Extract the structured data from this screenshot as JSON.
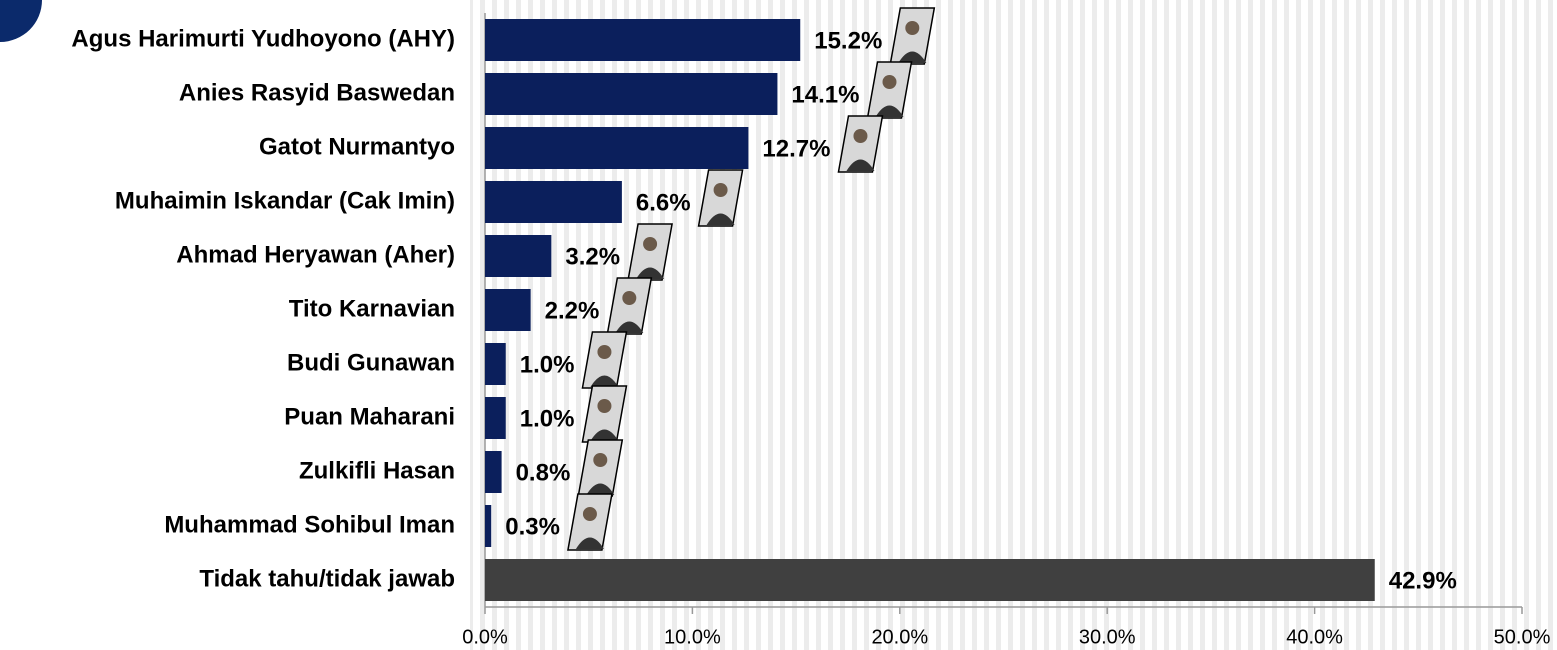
{
  "chart_data": {
    "type": "hbar",
    "categories": [
      "Agus Harimurti Yudhoyono (AHY)",
      "Anies Rasyid Baswedan",
      "Gatot Nurmantyo",
      "Muhaimin Iskandar (Cak Imin)",
      "Ahmad Heryawan (Aher)",
      "Tito Karnavian",
      "Budi Gunawan",
      "Puan Maharani",
      "Zulkifli Hasan",
      "Muhammad Sohibul Iman",
      "Tidak tahu/tidak jawab"
    ],
    "values": [
      15.2,
      14.1,
      12.7,
      6.6,
      3.2,
      2.2,
      1.0,
      1.0,
      0.8,
      0.3,
      42.9
    ],
    "value_labels": [
      "15.2%",
      "14.1%",
      "12.7%",
      "6.6%",
      "3.2%",
      "2.2%",
      "1.0%",
      "1.0%",
      "0.8%",
      "0.3%",
      "42.9%"
    ],
    "colors": [
      "#0b1f5c",
      "#0b1f5c",
      "#0b1f5c",
      "#0b1f5c",
      "#0b1f5c",
      "#0b1f5c",
      "#0b1f5c",
      "#0b1f5c",
      "#0b1f5c",
      "#0b1f5c",
      "#404040"
    ],
    "xlim": [
      0,
      50
    ],
    "xticks": [
      {
        "value": 0,
        "label": "0.0%"
      },
      {
        "value": 10,
        "label": "10.0%"
      },
      {
        "value": 20,
        "label": "20.0%"
      },
      {
        "value": 30,
        "label": "30.0%"
      },
      {
        "value": 40,
        "label": "40.0%"
      },
      {
        "value": 50,
        "label": "50.0%"
      }
    ]
  }
}
